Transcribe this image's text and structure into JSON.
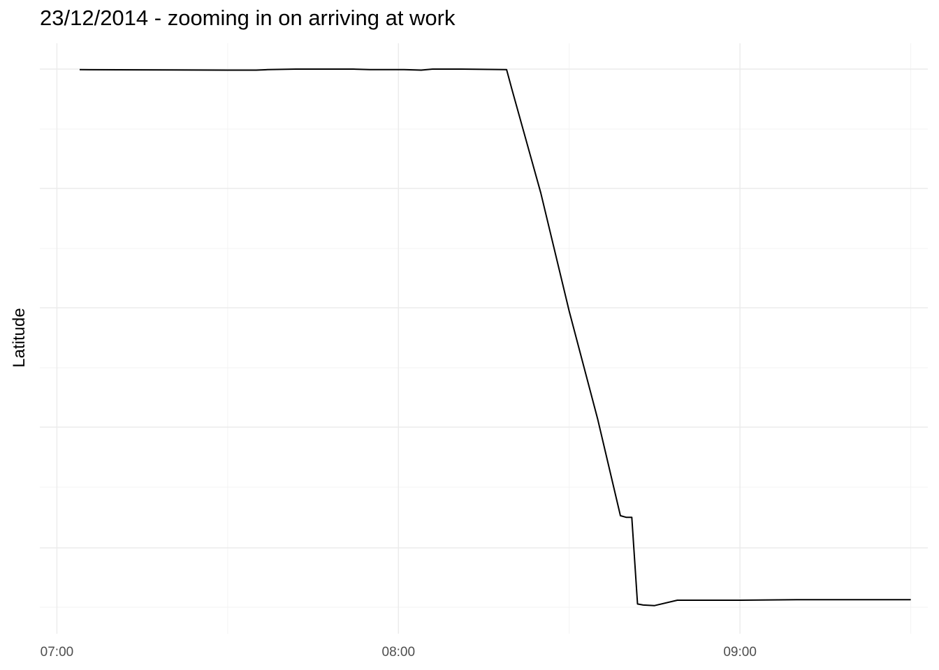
{
  "chart_data": {
    "type": "line",
    "title": "23/12/2014 - zooming in on arriving at work",
    "xlabel": "",
    "ylabel": "Latitude",
    "x_tick_labels": [
      "07:00",
      "08:00",
      "09:00"
    ],
    "y_tick_labels": [],
    "grid": true,
    "legend": "none",
    "colors": {
      "line": "#000000",
      "grid_major": "#ebebeb",
      "grid_minor": "#f3f3f3",
      "tick_text": "#4d4d4d"
    },
    "xlim": [
      "06:57",
      "09:33"
    ],
    "ylim": [
      0,
      1
    ],
    "series": [
      {
        "x": [
          "07:04",
          "07:30",
          "07:35",
          "07:37",
          "07:42",
          "07:48",
          "07:52",
          "07:55",
          "08:01",
          "08:04",
          "08:06",
          "08:11",
          "08:19",
          "08:20",
          "08:25",
          "08:30",
          "08:35",
          "08:39",
          "08:40",
          "08:41",
          "08:42",
          "08:43",
          "08:45",
          "08:49",
          "09:00",
          "09:10",
          "09:20",
          "09:30"
        ],
        "y": [
          0.999,
          0.998,
          0.998,
          0.999,
          1.0,
          1.0,
          1.0,
          0.999,
          0.999,
          0.998,
          1.0,
          1.0,
          0.999,
          0.96,
          0.77,
          0.55,
          0.35,
          0.17,
          0.167,
          0.167,
          0.006,
          0.004,
          0.003,
          0.013,
          0.013,
          0.014,
          0.014,
          0.014
        ]
      }
    ]
  }
}
